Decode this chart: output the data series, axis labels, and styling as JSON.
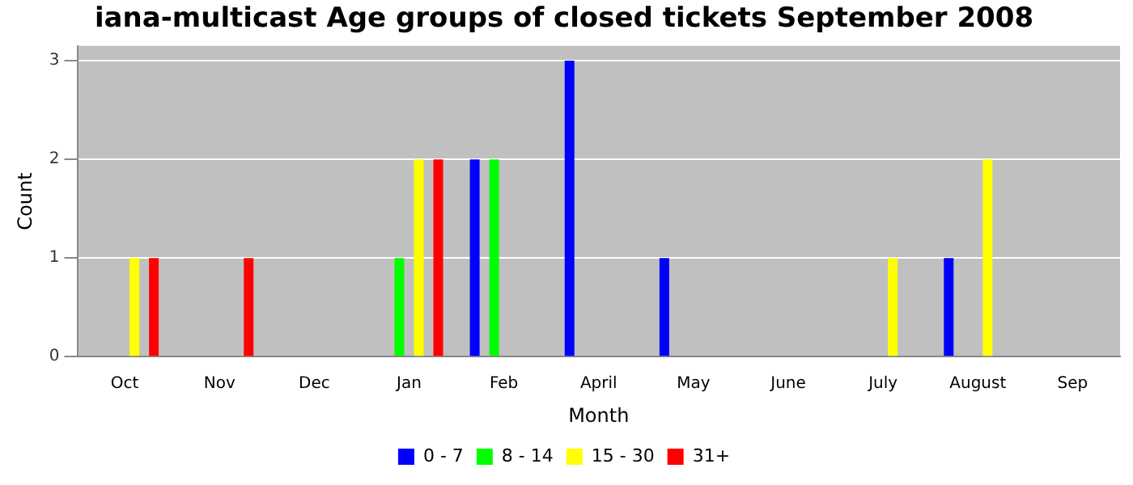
{
  "chart_data": {
    "type": "bar",
    "title": "iana-multicast Age groups of closed tickets September 2008",
    "xlabel": "Month",
    "ylabel": "Count",
    "categories": [
      "Oct",
      "Nov",
      "Dec",
      "Jan",
      "Feb",
      "April",
      "May",
      "June",
      "July",
      "August",
      "Sep"
    ],
    "series": [
      {
        "name": "0 - 7",
        "color": "#0000ff",
        "values": [
          0,
          0,
          0,
          0,
          2,
          3,
          1,
          0,
          0,
          1,
          0
        ]
      },
      {
        "name": "8 - 14",
        "color": "#00ff00",
        "values": [
          0,
          0,
          0,
          1,
          2,
          0,
          0,
          0,
          0,
          0,
          0
        ]
      },
      {
        "name": "15 - 30",
        "color": "#ffff00",
        "values": [
          1,
          0,
          0,
          2,
          0,
          0,
          0,
          0,
          1,
          2,
          0
        ]
      },
      {
        "name": "31+",
        "color": "#ff0000",
        "values": [
          1,
          1,
          0,
          2,
          0,
          0,
          0,
          0,
          0,
          0,
          0
        ]
      }
    ],
    "ylim": [
      0,
      3.15
    ],
    "yticks": [
      0,
      1,
      2,
      3
    ],
    "grid": "y",
    "legend": "bottom"
  }
}
